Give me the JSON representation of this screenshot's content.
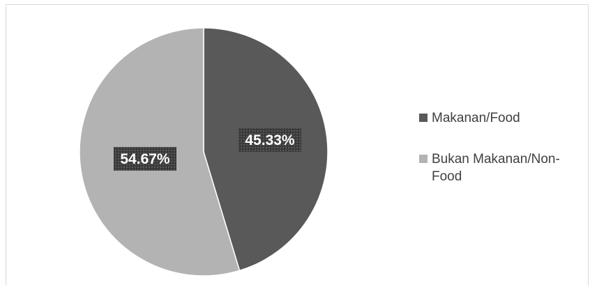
{
  "chart_data": {
    "type": "pie",
    "title": "",
    "slices": [
      {
        "name": "Makanan/Food",
        "value": 45.33,
        "label": "45.33%",
        "color": "#595959"
      },
      {
        "name": "Bukan Makanan/Non-Food",
        "value": 54.67,
        "label": "54.67%",
        "color": "#b3b3b3"
      }
    ],
    "start_angle": "top, clockwise",
    "legend_position": "right"
  }
}
